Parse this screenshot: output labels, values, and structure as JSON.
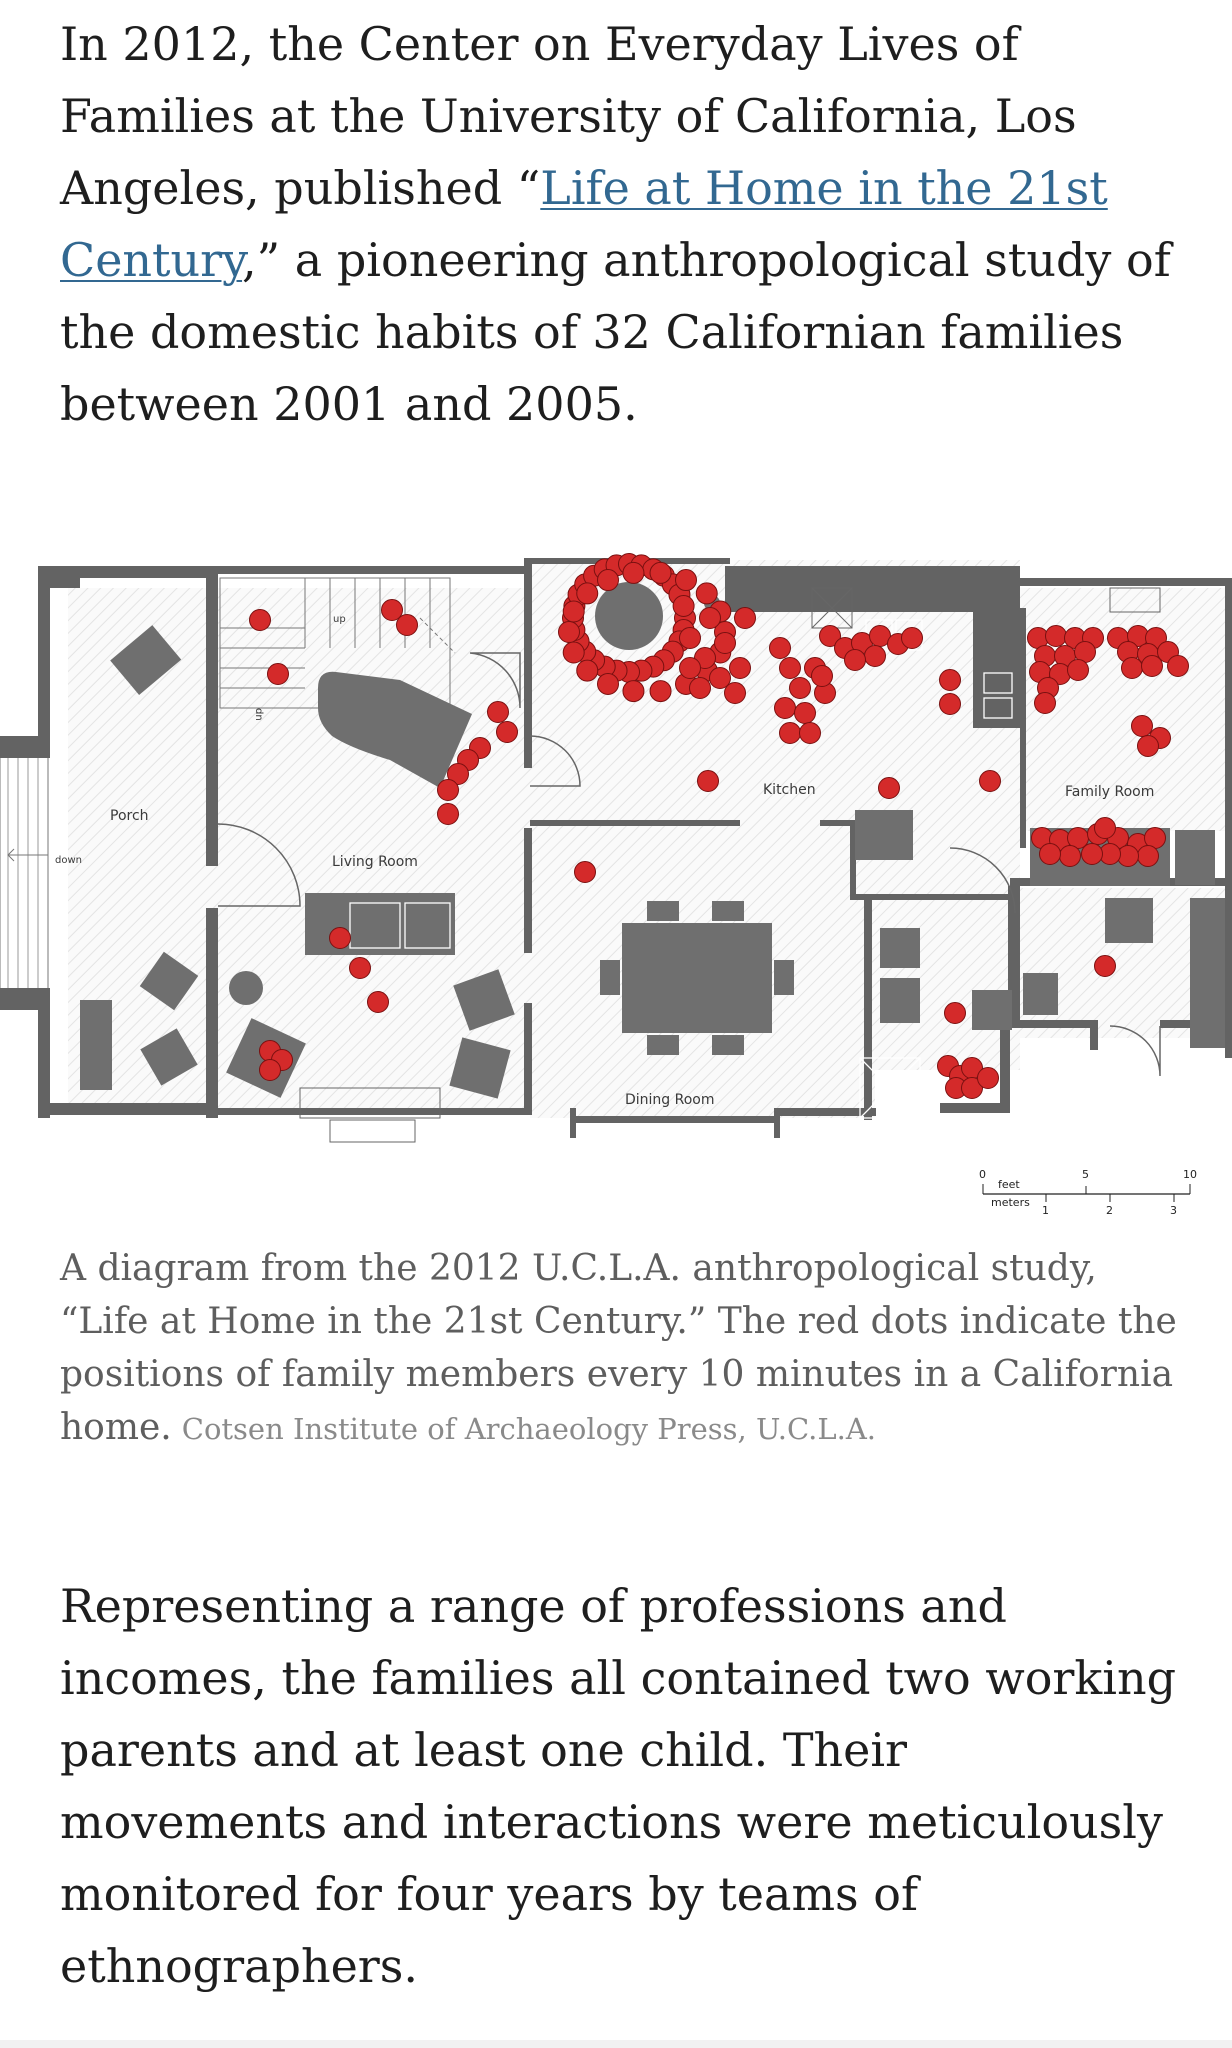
{
  "article": {
    "para1": {
      "before": "In 2012, the Center on Everyday Lives of Families at the University of California, Los Angeles, published “",
      "link": "Life at Home in the 21st Century",
      "after": ",” a pioneering anthropological study of the domestic habits of 32 Californian families between 2001 and 2005."
    },
    "para2": "Representing a range of professions and incomes, the families all contained two working parents and at least one child. Their movements and interactions were meticulously monitored for four years by teams of ethnographers."
  },
  "figure": {
    "rooms": {
      "porch": "Porch",
      "living_room": "Living Room",
      "kitchen": "Kitchen",
      "family_room": "Family Room",
      "dining_room": "Dining Room"
    },
    "stairs": {
      "up": "up",
      "dn": "dn",
      "down": "down"
    },
    "scale": {
      "feet_label": "feet",
      "meters_label": "meters",
      "feet_ticks": [
        "0",
        "5",
        "10"
      ],
      "meter_ticks": [
        "1",
        "2",
        "3"
      ]
    },
    "colors": {
      "dot": "#d42a2a",
      "wall": "#636363",
      "furniture": "#6f6f6f"
    },
    "caption": "A diagram from the 2012 U.C.L.A. anthropological study, “Life at Home in the 21st Century.” The red dots indicate the positions of family members every 10 minutes in a California home.",
    "credit": "Cotsen Institute of Archaeology Press, U.C.L.A."
  }
}
